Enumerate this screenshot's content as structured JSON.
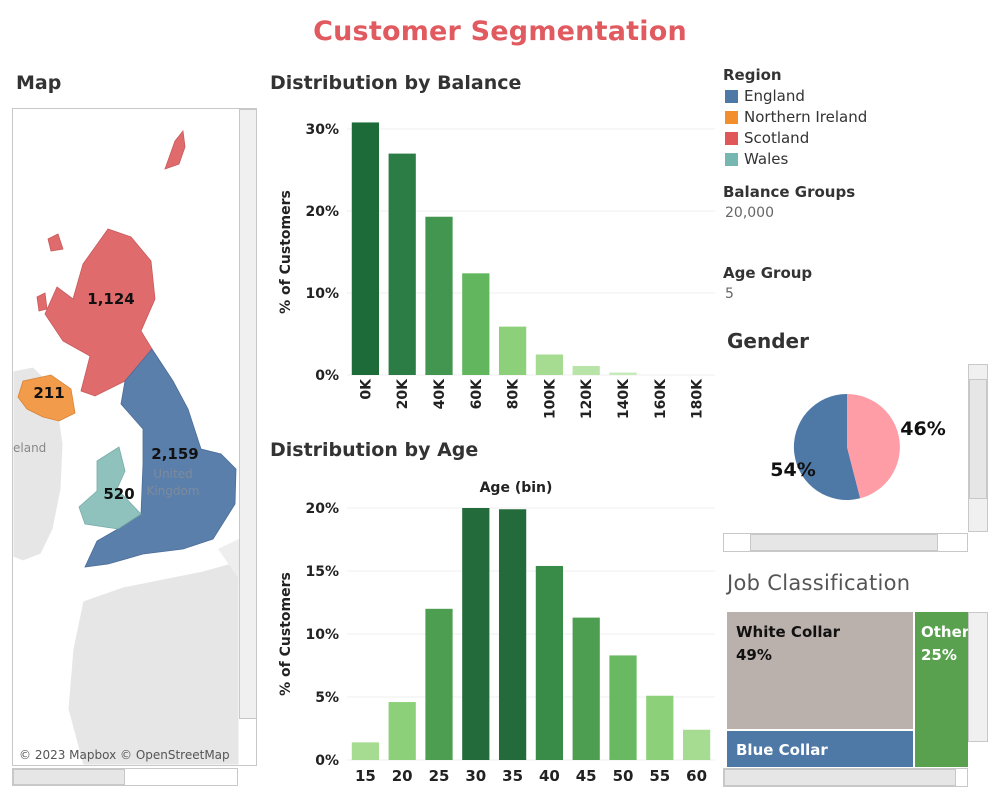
{
  "page": {
    "title": "Customer Segmentation"
  },
  "map": {
    "title": "Map",
    "attribution": "© 2023 Mapbox © OpenStreetMap",
    "basemap_labels": [
      "United",
      "Kingdom",
      "eland"
    ],
    "regions": [
      {
        "name": "England",
        "value": "2,159",
        "color": "#5b7fab"
      },
      {
        "name": "Northern Ireland",
        "value": "211",
        "color": "#f29b4a"
      },
      {
        "name": "Scotland",
        "value": "1,124",
        "color": "#e06b6d"
      },
      {
        "name": "Wales",
        "value": "520",
        "color": "#8fc2bd"
      }
    ]
  },
  "legend": {
    "region_title": "Region",
    "items": [
      {
        "label": "England",
        "color": "#4e79a7"
      },
      {
        "label": "Northern Ireland",
        "color": "#f28e2b"
      },
      {
        "label": "Scotland",
        "color": "#e15759"
      },
      {
        "label": "Wales",
        "color": "#76b7b2"
      }
    ],
    "balance_title": "Balance Groups",
    "balance_value": "20,000",
    "age_title": "Age Group",
    "age_value": "5"
  },
  "gender": {
    "title": "Gender",
    "slices": [
      {
        "label": "54%",
        "value": 54,
        "color": "#4e79a7"
      },
      {
        "label": "46%",
        "value": 46,
        "color": "#ff9da7"
      }
    ]
  },
  "job": {
    "title": "Job Classification",
    "tiles": [
      {
        "name": "White Collar",
        "pct": "49%",
        "value": 49,
        "color": "#bab0ac"
      },
      {
        "name": "Other",
        "pct": "25%",
        "value": 25,
        "color": "#59a14f"
      },
      {
        "name": "Blue Collar",
        "pct": "",
        "value": 26,
        "color": "#4e79a7"
      }
    ]
  },
  "chart_data": [
    {
      "type": "bar",
      "title": "Distribution by Balance",
      "ylabel": "% of Customers",
      "categories": [
        "0K",
        "20K",
        "40K",
        "60K",
        "80K",
        "100K",
        "120K",
        "140K",
        "160K",
        "180K"
      ],
      "values": [
        30.8,
        27.0,
        19.3,
        12.4,
        5.9,
        2.5,
        1.1,
        0.3,
        0,
        0
      ],
      "ylim": [
        0,
        30
      ],
      "yticks": [
        "0%",
        "10%",
        "20%",
        "30%"
      ],
      "colors": [
        "#1e6b3a",
        "#2b7d45",
        "#439650",
        "#62b65d",
        "#8cd07a",
        "#a5dc92",
        "#b8e5a7",
        "#c6ebb8",
        "#c6ebb8",
        "#c6ebb8"
      ]
    },
    {
      "type": "bar",
      "title": "Distribution by Age",
      "xlabel": "Age (bin)",
      "ylabel": "% of Customers",
      "categories": [
        "15",
        "20",
        "25",
        "30",
        "35",
        "40",
        "45",
        "50",
        "55",
        "60"
      ],
      "values": [
        1.4,
        4.6,
        12.0,
        20.0,
        19.9,
        15.4,
        11.3,
        8.3,
        5.1,
        2.4
      ],
      "ylim": [
        0,
        20
      ],
      "yticks": [
        "0%",
        "5%",
        "10%",
        "15%",
        "20%"
      ],
      "colors": [
        "#a5dc92",
        "#8cd07a",
        "#4d9e51",
        "#246b3c",
        "#246b3c",
        "#388c47",
        "#4d9e51",
        "#69b962",
        "#8cd07a",
        "#a5dc92"
      ]
    }
  ]
}
